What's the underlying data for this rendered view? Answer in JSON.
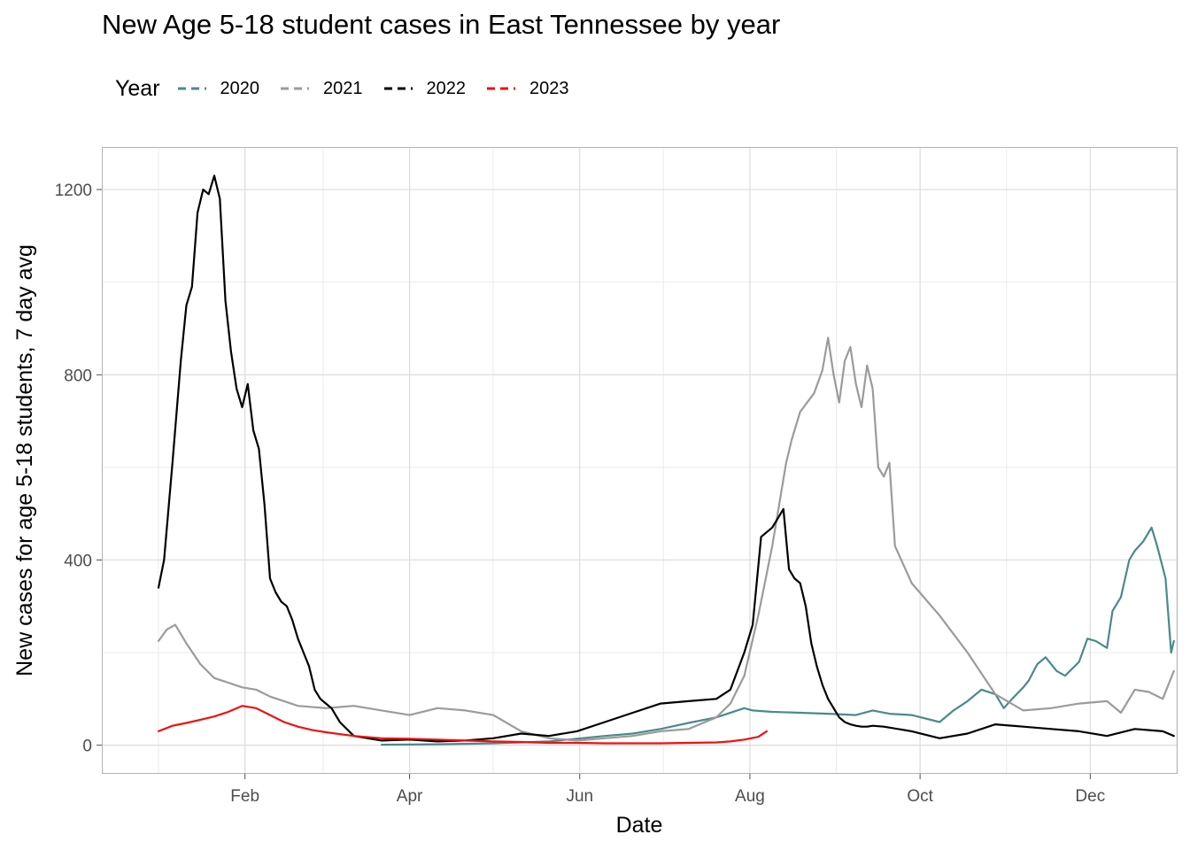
{
  "chart_data": {
    "type": "line",
    "title": "New Age 5-18 student cases in East Tennessee by year",
    "xlabel": "Date",
    "ylabel": "New cases for age 5-18 students, 7 day avg",
    "x_ticks": [
      "Feb",
      "Apr",
      "Jun",
      "Aug",
      "Oct",
      "Dec"
    ],
    "y_ticks": [
      "0",
      "400",
      "800",
      "1200"
    ],
    "ylim": [
      -60,
      1290
    ],
    "xlim_day_of_year": [
      -20,
      365
    ],
    "x_unit": "day of year",
    "grid": true,
    "legend": {
      "title": "Year",
      "position": "top",
      "style": "dashed"
    },
    "series": [
      {
        "name": "2020",
        "color": "#4a8a8c",
        "x": [
          80,
          100,
          120,
          140,
          150,
          160,
          170,
          180,
          190,
          200,
          210,
          213,
          220,
          230,
          240,
          250,
          256,
          262,
          270,
          280,
          285,
          290,
          295,
          300,
          303,
          306,
          310,
          312,
          315,
          318,
          322,
          325,
          330,
          333,
          336,
          340,
          342,
          345,
          348,
          350,
          353,
          356,
          358,
          361,
          363,
          364
        ],
        "y": [
          1,
          2,
          4,
          8,
          14,
          20,
          25,
          35,
          48,
          60,
          80,
          75,
          72,
          70,
          68,
          65,
          75,
          68,
          65,
          50,
          75,
          95,
          120,
          110,
          80,
          100,
          125,
          140,
          175,
          190,
          160,
          150,
          180,
          230,
          225,
          210,
          290,
          320,
          400,
          420,
          440,
          470,
          430,
          360,
          200,
          225
        ]
      },
      {
        "name": "2021",
        "color": "#9b9b9b",
        "x": [
          0,
          3,
          6,
          8,
          10,
          15,
          20,
          25,
          30,
          35,
          40,
          50,
          60,
          70,
          80,
          90,
          100,
          110,
          120,
          130,
          140,
          150,
          160,
          170,
          180,
          190,
          200,
          205,
          210,
          215,
          220,
          225,
          227,
          230,
          235,
          238,
          240,
          242,
          244,
          246,
          248,
          250,
          252,
          254,
          256,
          258,
          260,
          262,
          264,
          270,
          280,
          290,
          300,
          310,
          320,
          330,
          340,
          345,
          350,
          355,
          360,
          364
        ],
        "y": [
          225,
          250,
          260,
          240,
          220,
          175,
          145,
          135,
          125,
          120,
          105,
          85,
          80,
          85,
          75,
          65,
          80,
          75,
          65,
          30,
          15,
          10,
          15,
          20,
          30,
          35,
          60,
          90,
          150,
          280,
          430,
          610,
          660,
          720,
          760,
          810,
          880,
          800,
          740,
          830,
          860,
          780,
          730,
          820,
          770,
          600,
          580,
          610,
          430,
          350,
          280,
          200,
          110,
          75,
          80,
          90,
          95,
          70,
          120,
          115,
          100,
          160
        ]
      },
      {
        "name": "2022",
        "color": "#000000",
        "x": [
          0,
          2,
          5,
          8,
          10,
          12,
          14,
          16,
          18,
          20,
          22,
          24,
          26,
          28,
          30,
          32,
          34,
          36,
          38,
          40,
          42,
          44,
          46,
          48,
          50,
          52,
          54,
          56,
          58,
          60,
          62,
          65,
          70,
          80,
          90,
          100,
          110,
          120,
          130,
          140,
          150,
          160,
          170,
          180,
          190,
          200,
          205,
          210,
          213,
          216,
          220,
          222,
          224,
          226,
          228,
          230,
          232,
          234,
          236,
          238,
          240,
          242,
          244,
          246,
          248,
          250,
          252,
          254,
          256,
          260,
          270,
          280,
          290,
          300,
          310,
          320,
          330,
          340,
          350,
          360,
          364
        ],
        "y": [
          340,
          400,
          610,
          830,
          950,
          990,
          1150,
          1200,
          1190,
          1230,
          1180,
          960,
          850,
          770,
          730,
          780,
          680,
          640,
          520,
          360,
          330,
          310,
          300,
          270,
          230,
          200,
          170,
          120,
          100,
          90,
          80,
          50,
          20,
          10,
          12,
          8,
          10,
          15,
          25,
          20,
          30,
          50,
          70,
          90,
          95,
          100,
          120,
          200,
          260,
          450,
          470,
          490,
          510,
          380,
          360,
          350,
          300,
          220,
          170,
          130,
          100,
          80,
          60,
          50,
          45,
          42,
          40,
          40,
          42,
          40,
          30,
          15,
          25,
          45,
          40,
          35,
          30,
          20,
          35,
          30,
          20
        ]
      },
      {
        "name": "2023",
        "color": "#ee1111",
        "x": [
          0,
          5,
          10,
          15,
          20,
          25,
          30,
          35,
          40,
          45,
          50,
          55,
          60,
          70,
          80,
          90,
          100,
          110,
          120,
          130,
          140,
          150,
          160,
          170,
          180,
          190,
          200,
          205,
          210,
          215,
          218
        ],
        "y": [
          30,
          42,
          48,
          55,
          62,
          72,
          85,
          80,
          65,
          50,
          40,
          33,
          28,
          20,
          15,
          14,
          12,
          10,
          8,
          7,
          5,
          5,
          4,
          4,
          4,
          5,
          6,
          8,
          12,
          18,
          30
        ]
      }
    ]
  }
}
